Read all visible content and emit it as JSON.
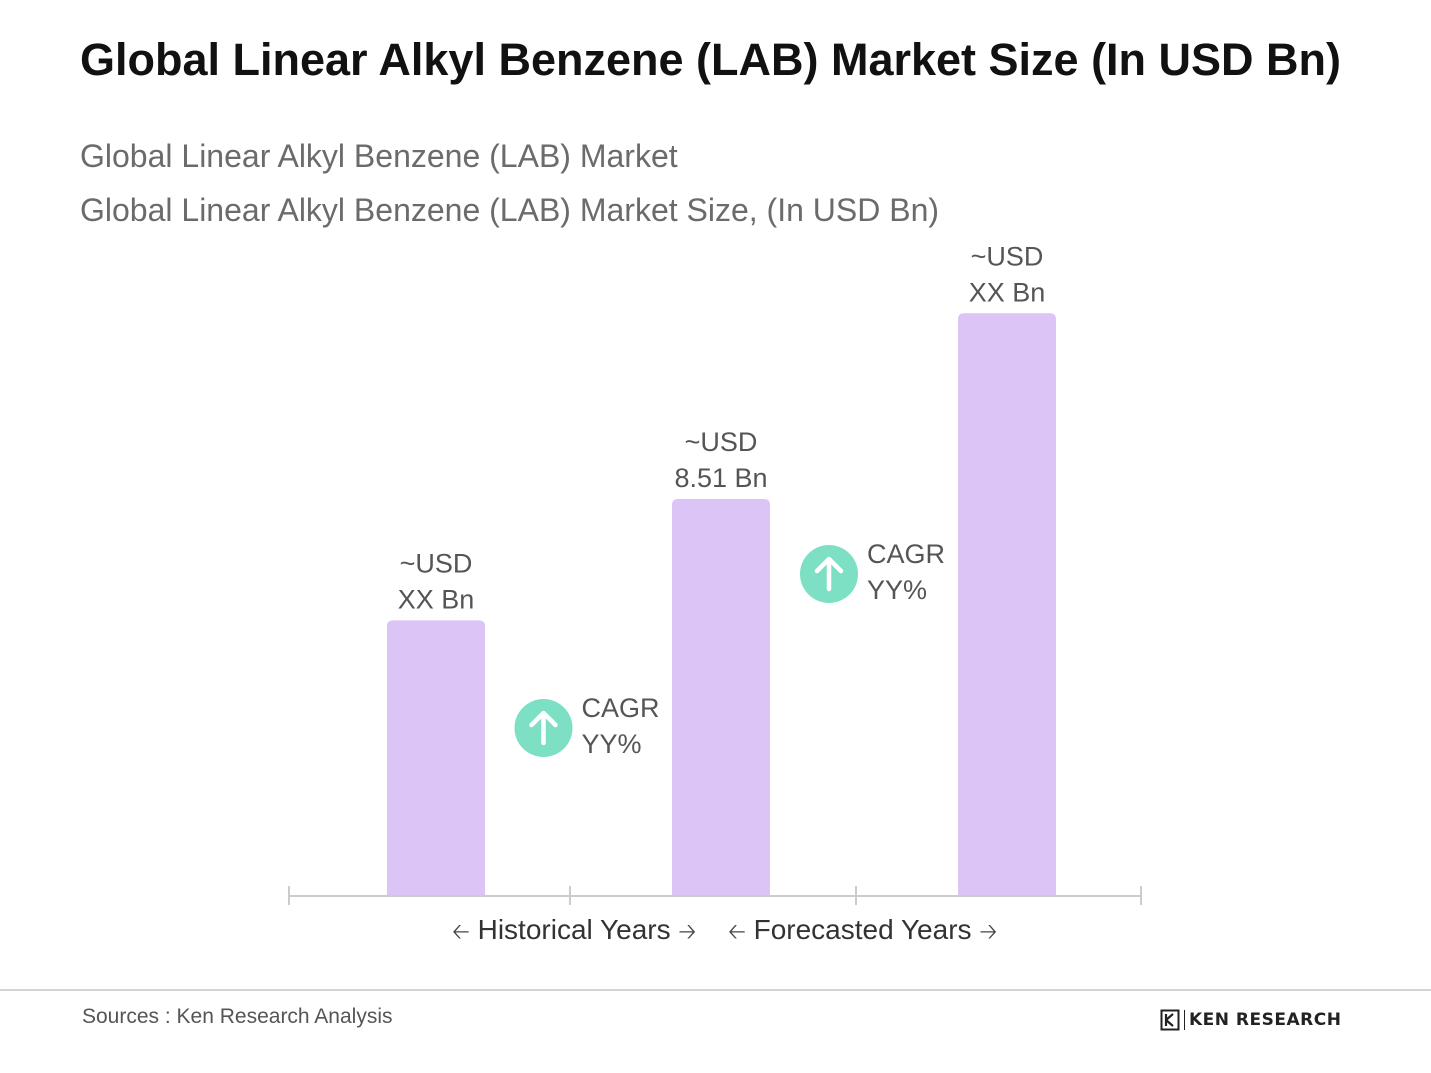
{
  "title": "Global Linear Alkyl Benzene (LAB) Market Size (In USD Bn)",
  "subtitle_lines": [
    "Global Linear Alkyl Benzene (LAB) Market",
    "Global Linear Alkyl Benzene (LAB) Market Size, (In USD Bn)"
  ],
  "chart_data": {
    "type": "bar",
    "title": "Global Linear Alkyl Benzene (LAB) Market Size (In USD Bn)",
    "categories": [
      "",
      "",
      ""
    ],
    "values": [
      5.9,
      8.51,
      12.5
    ],
    "value_labels": [
      [
        "~USD",
        "XX Bn"
      ],
      [
        "~USD",
        "8.51 Bn"
      ],
      [
        "~USD",
        "XX Bn"
      ]
    ],
    "ylim": [
      0,
      13
    ],
    "grid": false,
    "bar_color": "#dcc4f6",
    "cagr_annotations": [
      [
        "CAGR",
        "YY%"
      ],
      [
        "CAGR",
        "YY%"
      ]
    ],
    "cagr_color": "#7ddfc3",
    "x_periods": [
      "Historical Years",
      "Forecasted Years"
    ]
  },
  "source": "Sources : Ken Research Analysis",
  "logo_text": "KEN RESEARCH",
  "icons": {
    "cagr": "arrow-up-circle-icon",
    "period_arrows": [
      "arrow-left-icon",
      "arrow-right-icon"
    ],
    "logo": "ken-research-logo-icon"
  }
}
